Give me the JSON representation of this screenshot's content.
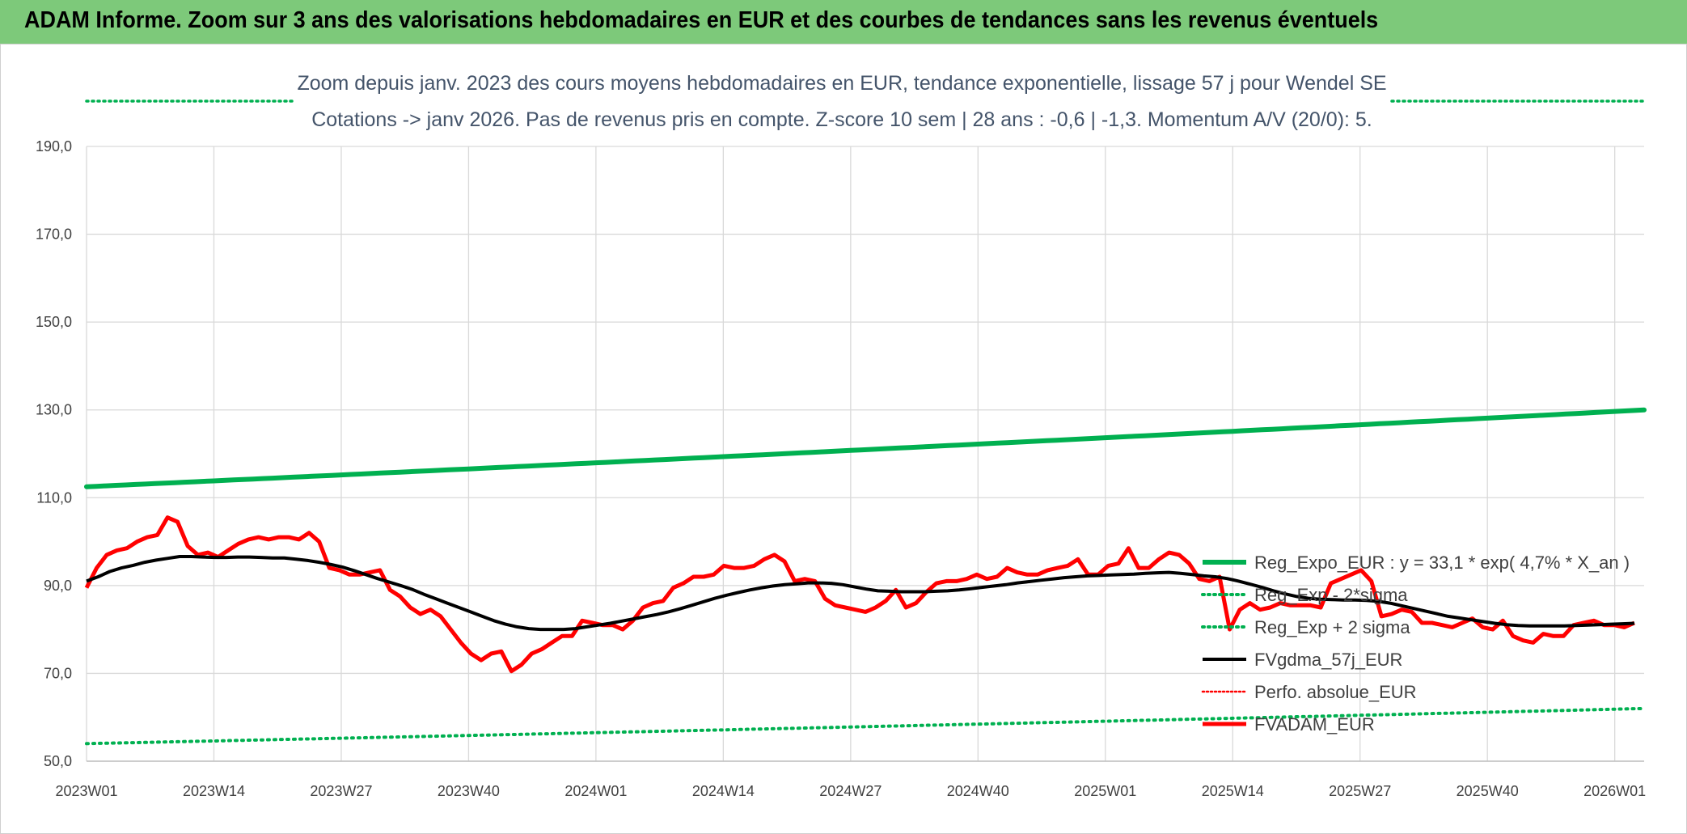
{
  "banner": {
    "title": "ADAM Informe. Zoom sur 3 ans des valorisations hebdomadaires en EUR et des courbes de tendances sans les revenus éventuels"
  },
  "chart_data": {
    "type": "line",
    "title_line1": "Zoom depuis janv. 2023 des cours moyens hebdomadaires en EUR, tendance exponentielle, lissage 57 j pour Wendel SE",
    "title_line2": "Cotations -> janv 2026. Pas de revenus pris en compte. Z-score 10 sem | 28 ans : -0,6 | -1,3. Momentum A/V (20/0): 5.",
    "ylim": [
      50,
      190
    ],
    "y_ticks": [
      "50,0",
      "70,0",
      "90,0",
      "110,0",
      "130,0",
      "150,0",
      "170,0",
      "190,0"
    ],
    "x_tick_labels": [
      "2023W01",
      "2023W14",
      "2023W27",
      "2023W40",
      "2024W01",
      "2024W14",
      "2024W27",
      "2024W40",
      "2025W01",
      "2025W14",
      "2025W27",
      "2025W40",
      "2026W01"
    ],
    "grid": true,
    "legend_position": "right-inside",
    "colors": {
      "reg_expo": "#00b050",
      "sigma": "#00b050",
      "fvgdma": "#000000",
      "perfo": "#ff0000",
      "fvadam": "#ff0000"
    },
    "series": [
      {
        "name": "Reg_Expo_EUR : y = 33,1 * exp( 4,7% *  X_an )",
        "style": "solid-thick",
        "start": 112.5,
        "end": 130.0
      },
      {
        "name": "Reg_Exp - 2*sigma",
        "style": "dotted",
        "start": 54.0,
        "end": 62.0
      },
      {
        "name": "Reg_Exp + 2 sigma",
        "style": "dotted",
        "values": []
      },
      {
        "name": "FVgdma_57j_EUR",
        "style": "solid",
        "values": [
          91,
          92,
          93.2,
          94,
          94.6,
          95.3,
          95.8,
          96.2,
          96.6,
          96.6,
          96.5,
          96.4,
          96.4,
          96.5,
          96.5,
          96.4,
          96.3,
          96.3,
          96,
          95.7,
          95.3,
          94.8,
          94.2,
          93.4,
          92.5,
          91.6,
          90.8,
          90,
          89.1,
          88,
          87,
          86,
          85,
          84,
          83,
          82,
          81.2,
          80.6,
          80.2,
          80,
          80,
          80,
          80.2,
          80.6,
          81,
          81.4,
          81.9,
          82.4,
          82.9,
          83.4,
          84,
          84.7,
          85.5,
          86.3,
          87.1,
          87.8,
          88.4,
          89,
          89.5,
          89.9,
          90.2,
          90.4,
          90.6,
          90.6,
          90.5,
          90.2,
          89.7,
          89.2,
          88.8,
          88.7,
          88.6,
          88.6,
          88.6,
          88.7,
          88.8,
          89,
          89.3,
          89.6,
          89.9,
          90.2,
          90.6,
          90.9,
          91.2,
          91.5,
          91.8,
          92,
          92.2,
          92.3,
          92.4,
          92.5,
          92.6,
          92.8,
          92.9,
          93,
          92.8,
          92.5,
          92.2,
          92,
          91.6,
          91,
          90.3,
          89.6,
          88.8,
          88.1,
          87.5,
          87.1,
          86.9,
          86.8,
          86.7,
          86.7,
          86.6,
          86.4,
          86,
          85.4,
          84.8,
          84.2,
          83.6,
          83,
          82.6,
          82.2,
          81.8,
          81.4,
          81.1,
          80.9,
          80.8,
          80.8,
          80.8,
          80.8,
          80.9,
          81,
          81.1,
          81.2,
          81.3,
          81.4
        ]
      },
      {
        "name": "Perfo. absolue_EUR",
        "style": "dotted",
        "values": []
      },
      {
        "name": "FVADAM_EUR",
        "style": "solid-thick",
        "values": [
          89.5,
          94,
          97,
          98,
          98.5,
          100,
          101,
          101.5,
          105.5,
          104.5,
          99,
          97,
          97.5,
          96.5,
          98,
          99.5,
          100.5,
          101,
          100.5,
          101,
          101,
          100.5,
          102,
          100,
          94,
          93.5,
          92.5,
          92.5,
          93,
          93.5,
          89,
          87.5,
          85,
          83.5,
          84.5,
          83,
          80,
          77,
          74.5,
          73,
          74.5,
          75,
          70.5,
          72,
          74.5,
          75.5,
          77,
          78.5,
          78.5,
          82,
          81.5,
          81,
          81,
          80,
          82,
          85,
          86,
          86.5,
          89.5,
          90.5,
          92,
          92,
          92.5,
          94.5,
          94,
          94,
          94.5,
          96,
          97,
          95.5,
          91,
          91.5,
          91,
          87,
          85.5,
          85,
          84.5,
          84,
          85,
          86.5,
          89,
          85,
          86,
          88.5,
          90.5,
          91,
          91,
          91.5,
          92.5,
          91.5,
          92,
          94,
          93,
          92.5,
          92.5,
          93.5,
          94,
          94.5,
          96,
          92.5,
          92.5,
          94.5,
          95,
          98.5,
          94,
          94,
          96,
          97.5,
          97,
          95,
          91.5,
          91,
          92,
          80,
          84.5,
          86,
          84.5,
          85,
          86,
          85.5,
          85.5,
          85.5,
          85,
          90.5,
          91.5,
          92.5,
          93.5,
          91,
          83,
          83.5,
          84.5,
          84,
          81.5,
          81.5,
          81,
          80.5,
          81.5,
          82.5,
          80.5,
          80,
          82,
          78.5,
          77.5,
          77,
          79,
          78.5,
          78.5,
          81,
          81.5,
          82,
          81,
          81,
          80.5,
          81.5
        ]
      }
    ]
  }
}
